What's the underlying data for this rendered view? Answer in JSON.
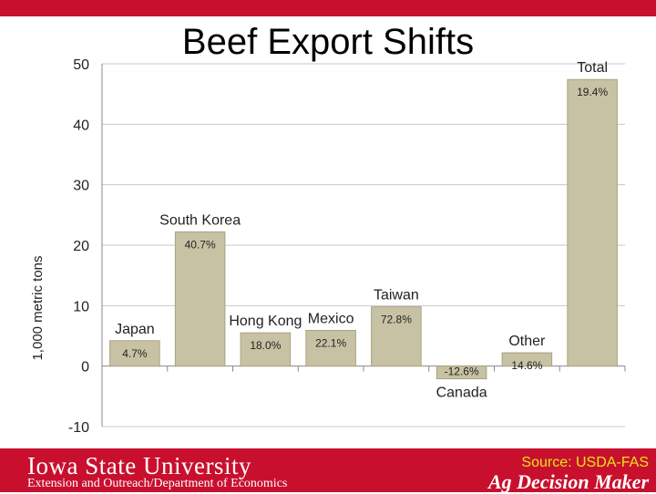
{
  "slide": {
    "title": "Beef Export Shifts",
    "university": "Iowa State University",
    "extension": "Extension and Outreach/Department of Economics",
    "source": "Source: USDA-FAS",
    "brand": "Ag Decision Maker"
  },
  "colors": {
    "brand_red": "#c8102e",
    "bar_fill": "#c8c2a4",
    "bar_stroke": "#a9a180",
    "source_text": "#e8e41a"
  },
  "chart_data": {
    "type": "bar",
    "title": "Beef Export Shifts",
    "ylabel": "1,000 metric tons",
    "xlabel": "",
    "ylim": [
      -10,
      50
    ],
    "yticks": [
      -10,
      0,
      10,
      20,
      30,
      40,
      50
    ],
    "grid": true,
    "categories": [
      "Japan",
      "South Korea",
      "Hong Kong",
      "Mexico",
      "Taiwan",
      "Canada",
      "Other",
      "Total"
    ],
    "values": [
      4.2,
      22.2,
      5.5,
      5.9,
      9.8,
      -2.1,
      2.2,
      47.4
    ],
    "bar_labels": [
      "4.7%",
      "40.7%",
      "18.0%",
      "22.1%",
      "72.8%",
      "-12.6%",
      "14.6%",
      "19.4%"
    ]
  }
}
